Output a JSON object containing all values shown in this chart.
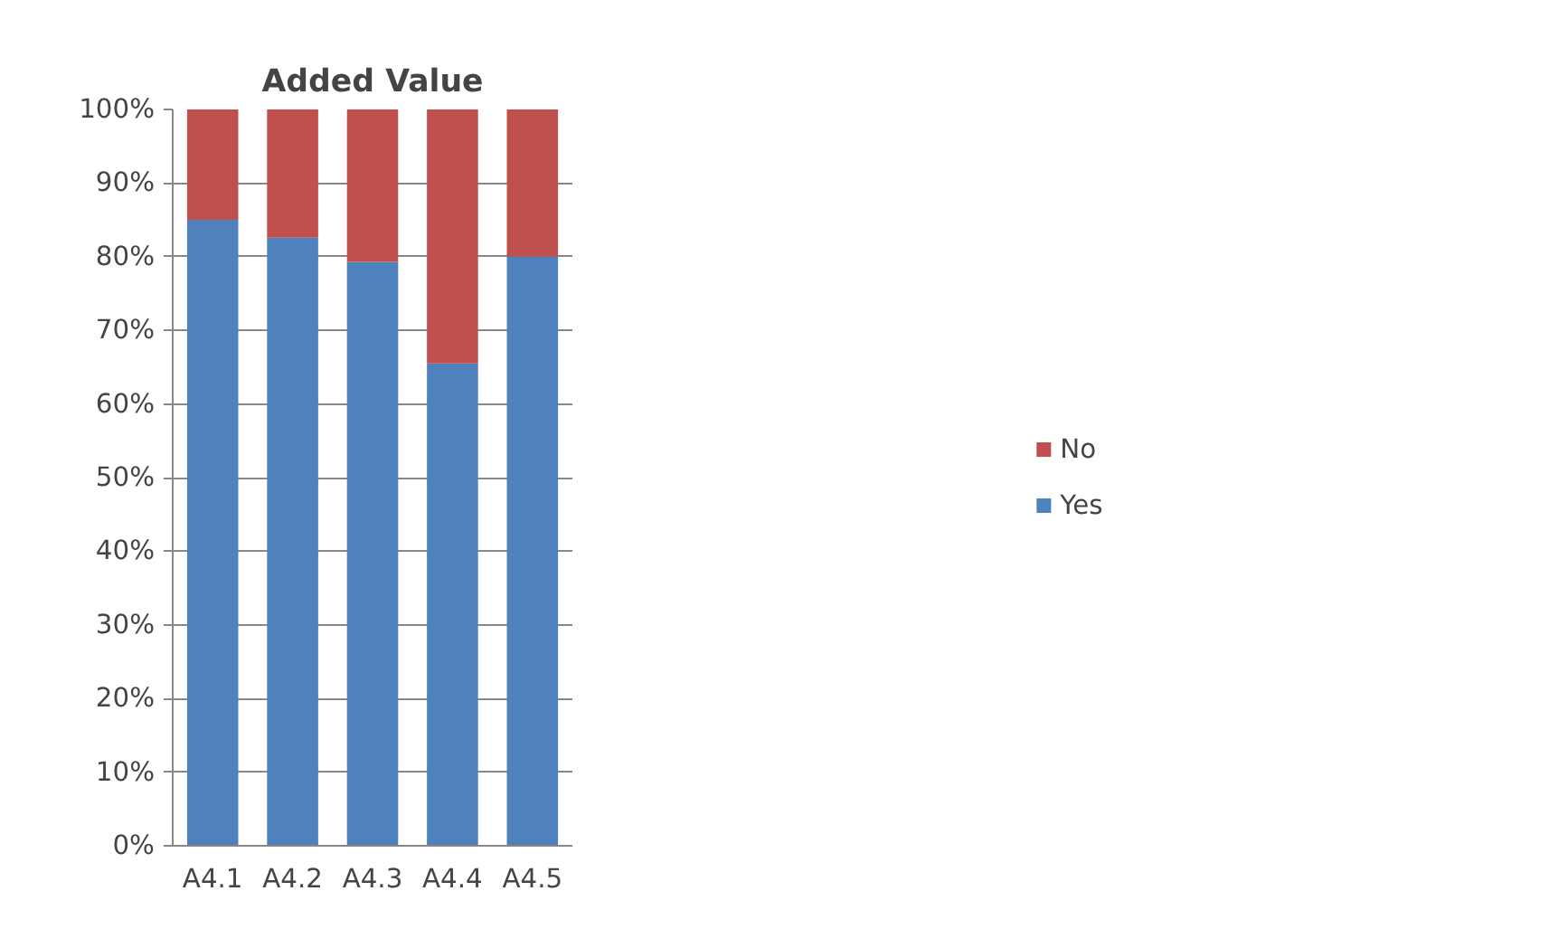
{
  "chart_data": {
    "type": "bar",
    "title": "Added Value",
    "stacked": true,
    "categories": [
      "A4.1",
      "A4.2",
      "A4.3",
      "A4.4",
      "A4.5"
    ],
    "series": [
      {
        "name": "Yes",
        "color": "#4f81bd",
        "values": [
          85,
          82.6,
          79.3,
          65.5,
          80
        ]
      },
      {
        "name": "No",
        "color": "#c0504d",
        "values": [
          15,
          17.4,
          20.7,
          34.5,
          20
        ]
      }
    ],
    "ylim": [
      0,
      100
    ],
    "yticks": [
      {
        "value": 0,
        "label": "0%"
      },
      {
        "value": 10,
        "label": "10%"
      },
      {
        "value": 20,
        "label": "20%"
      },
      {
        "value": 30,
        "label": "30%"
      },
      {
        "value": 40,
        "label": "40%"
      },
      {
        "value": 50,
        "label": "50%"
      },
      {
        "value": 60,
        "label": "60%"
      },
      {
        "value": 70,
        "label": "70%"
      },
      {
        "value": 80,
        "label": "80%"
      },
      {
        "value": 90,
        "label": "90%"
      },
      {
        "value": 100,
        "label": "100%"
      }
    ],
    "grid": "y",
    "legend": "right"
  }
}
